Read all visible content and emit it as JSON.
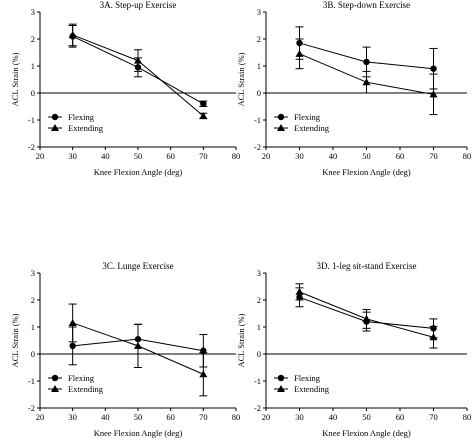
{
  "chart_data": [
    {
      "type": "line",
      "title": "3A. Step-up Exercise",
      "xlabel": "Knee Flexion Angle (deg)",
      "ylabel": "ACL Strain (%)",
      "xlim": [
        20,
        80
      ],
      "ylim": [
        -2,
        3
      ],
      "xticks": [
        20,
        30,
        40,
        50,
        60,
        70,
        80
      ],
      "yticks": [
        -2,
        -1,
        0,
        1,
        2,
        3
      ],
      "legend_position": "lower-left",
      "x": [
        30,
        50,
        70
      ],
      "series": [
        {
          "name": "Flexing",
          "marker": "circle",
          "values": [
            2.1,
            0.95,
            -0.4
          ],
          "err": [
            0.4,
            0.35,
            0.1
          ]
        },
        {
          "name": "Extending",
          "marker": "triangle",
          "values": [
            2.15,
            1.2,
            -0.85
          ],
          "err": [
            0.4,
            0.4,
            0.1
          ]
        }
      ]
    },
    {
      "type": "line",
      "title": "3B. Step-down Exercise",
      "xlabel": "Knee Flexion Angle (deg)",
      "ylabel": "ACL Strain (%)",
      "xlim": [
        20,
        80
      ],
      "ylim": [
        -2,
        3
      ],
      "xticks": [
        20,
        30,
        40,
        50,
        60,
        70,
        80
      ],
      "yticks": [
        -2,
        -1,
        0,
        1,
        2,
        3
      ],
      "legend_position": "lower-left",
      "x": [
        30,
        50,
        70
      ],
      "series": [
        {
          "name": "Flexing",
          "marker": "circle",
          "values": [
            1.85,
            1.15,
            0.9
          ],
          "err": [
            0.6,
            0.55,
            0.75
          ]
        },
        {
          "name": "Extending",
          "marker": "triangle",
          "values": [
            1.45,
            0.4,
            -0.05
          ],
          "err": [
            0.55,
            0.4,
            0.75
          ]
        }
      ]
    },
    {
      "type": "line",
      "title": "3C. Lunge Exercise",
      "xlabel": "Knee Flexion Angle (deg)",
      "ylabel": "ACL Strain (%)",
      "xlim": [
        20,
        80
      ],
      "ylim": [
        -2,
        3
      ],
      "xticks": [
        20,
        30,
        40,
        50,
        60,
        70,
        80
      ],
      "yticks": [
        -2,
        -1,
        0,
        1,
        2,
        3
      ],
      "legend_position": "lower-left",
      "x": [
        30,
        50,
        70
      ],
      "series": [
        {
          "name": "Flexing",
          "marker": "circle",
          "values": [
            0.3,
            0.55,
            0.12
          ],
          "err": [
            0.7,
            0.55,
            0.6
          ]
        },
        {
          "name": "Extending",
          "marker": "triangle",
          "values": [
            1.15,
            0.3,
            -0.75
          ],
          "err": [
            0.7,
            0.8,
            0.8
          ]
        }
      ]
    },
    {
      "type": "line",
      "title": "3D. 1-leg sit-stand Exercise",
      "xlabel": "Knee Flexion Angle (deg)",
      "ylabel": "ACL Strain (%)",
      "xlim": [
        20,
        80
      ],
      "ylim": [
        -2,
        3
      ],
      "xticks": [
        20,
        30,
        40,
        50,
        60,
        70,
        80
      ],
      "yticks": [
        -2,
        -1,
        0,
        1,
        2,
        3
      ],
      "legend_position": "lower-left",
      "x": [
        30,
        50,
        70
      ],
      "series": [
        {
          "name": "Flexing",
          "marker": "circle",
          "values": [
            2.1,
            1.2,
            0.95
          ],
          "err": [
            0.35,
            0.35,
            0.35
          ]
        },
        {
          "name": "Extending",
          "marker": "triangle",
          "values": [
            2.3,
            1.3,
            0.62
          ],
          "err": [
            0.3,
            0.35,
            0.4
          ]
        }
      ]
    }
  ]
}
